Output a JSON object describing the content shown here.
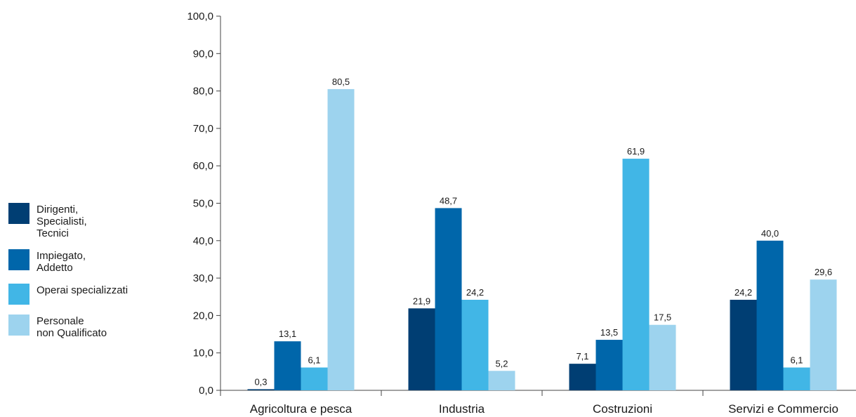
{
  "chart_data": {
    "type": "bar",
    "categories": [
      "Agricoltura e pesca",
      "Industria",
      "Costruzioni",
      "Servizi e Commercio"
    ],
    "series": [
      {
        "name": "Dirigenti,\nSpecialisti,\nTecnici",
        "color": "#003e73",
        "values": [
          0.3,
          21.9,
          7.1,
          24.2
        ],
        "labels": [
          "0,3",
          "21,9",
          "7,1",
          "24,2"
        ]
      },
      {
        "name": "Impiegato,\nAddetto",
        "color": "#0066aa",
        "values": [
          13.1,
          48.7,
          13.5,
          40.0
        ],
        "labels": [
          "13,1",
          "48,7",
          "13,5",
          "40,0"
        ]
      },
      {
        "name": "Operai specializzati",
        "color": "#41b6e6",
        "values": [
          6.1,
          24.2,
          61.9,
          6.1
        ],
        "labels": [
          "6,1",
          "24,2",
          "61,9",
          "6,1"
        ]
      },
      {
        "name": "Personale\nnon Qualificato",
        "color": "#9dd3ee",
        "values": [
          80.5,
          5.2,
          17.5,
          29.6
        ],
        "labels": [
          "80,5",
          "5,2",
          "17,5",
          "29,6"
        ]
      }
    ],
    "y_ticks": [
      "0,0",
      "10,0",
      "20,0",
      "30,0",
      "40,0",
      "50,0",
      "60,0",
      "70,0",
      "80,0",
      "90,0",
      "100,0"
    ],
    "ylim": [
      0,
      100
    ],
    "grid": false,
    "legend_position": "left"
  }
}
